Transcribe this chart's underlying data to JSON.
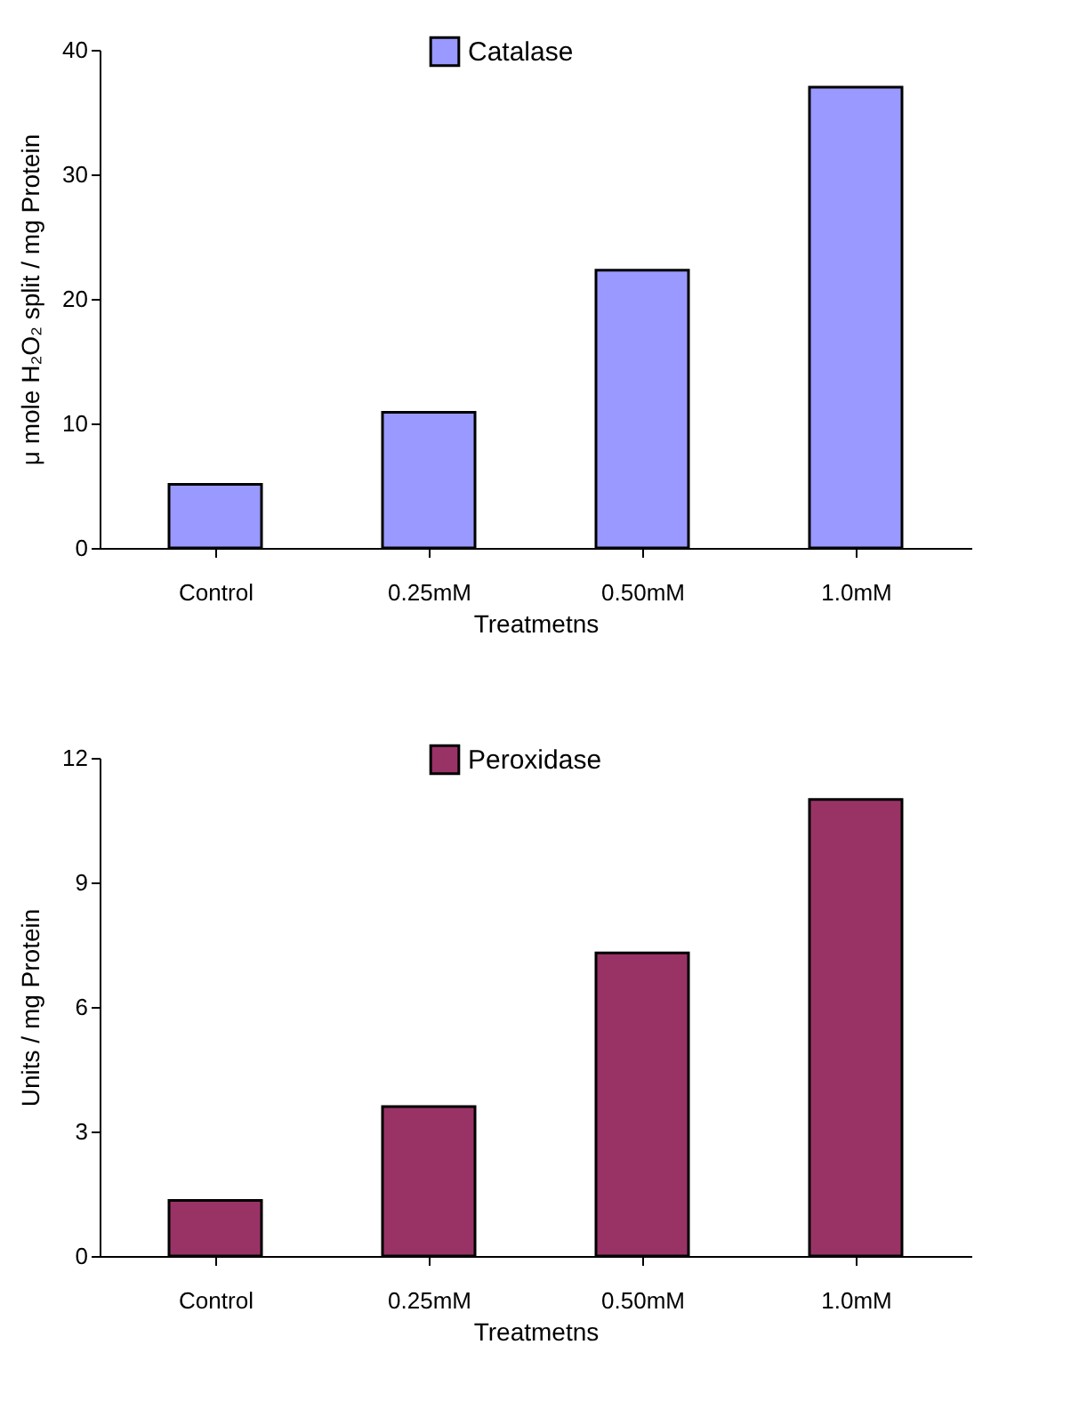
{
  "chart_data": [
    {
      "type": "bar",
      "categories": [
        "Control",
        "0.25mM",
        "0.50mM",
        "1.0mM"
      ],
      "xlabel": "Treatmetns",
      "ylabel": "μ mole H₂O₂ split / mg Protein",
      "ylim": [
        0,
        40
      ],
      "yticks": [
        0,
        10,
        20,
        30,
        40
      ],
      "grid": false,
      "legend": "top",
      "series": [
        {
          "name": "Catalase",
          "color": "#9999ff",
          "values": [
            5.1,
            10.9,
            22.3,
            37
          ]
        }
      ]
    },
    {
      "type": "bar",
      "categories": [
        "Control",
        "0.25mM",
        "0.50mM",
        "1.0mM"
      ],
      "xlabel": "Treatmetns",
      "ylabel": "Units / mg Protein",
      "ylim": [
        0,
        12
      ],
      "yticks": [
        0,
        3,
        6,
        9,
        12
      ],
      "grid": false,
      "legend": "top",
      "series": [
        {
          "name": "Peroxidase",
          "color": "#993366",
          "values": [
            1.34,
            3.6,
            7.3,
            11.0
          ]
        }
      ]
    }
  ]
}
